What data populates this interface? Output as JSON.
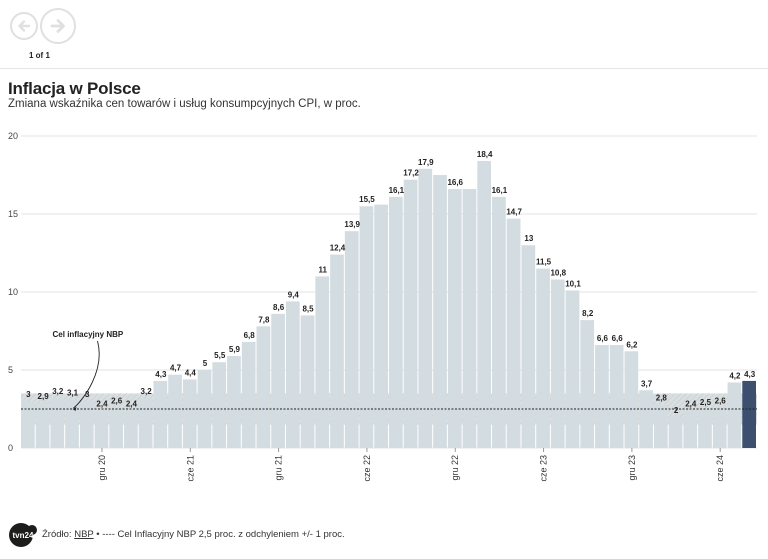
{
  "nav": {
    "page_indicator": "1 of 1"
  },
  "header": {
    "title": "Inflacja w Polsce",
    "subtitle": "Zmiana wskaźnika cen towarów i usług konsumpcyjnych CPI, w proc."
  },
  "footer": {
    "source_prefix": "Źródło:",
    "source_link": "NBP",
    "source_rest": "• ---- Cel Inflacyjny NBP 2,5 proc. z odchyleniem +/- 1 proc.",
    "logo_text": "tvn24"
  },
  "colors": {
    "bar": "#d3dde1",
    "highlight": "#3d4f6e",
    "band": "#b9c2c6"
  },
  "chart_data": {
    "type": "bar",
    "title": "Inflacja w Polsce",
    "subtitle": "Zmiana wskaźnika cen towarów i usług konsumpcyjnych CPI, w proc.",
    "xlabel": "",
    "ylabel": "",
    "ylim": [
      0,
      20
    ],
    "yticks": [
      0,
      5,
      10,
      15,
      20
    ],
    "grid": true,
    "values": [
      3,
      2.9,
      3.2,
      3.1,
      3,
      2.4,
      2.6,
      2.4,
      3.2,
      4.3,
      4.7,
      4.4,
      5,
      5.5,
      5.9,
      6.8,
      7.8,
      8.6,
      9.4,
      8.5,
      11,
      12.4,
      13.9,
      15.5,
      15.6,
      16.1,
      17.2,
      17.9,
      17.5,
      16.6,
      16.6,
      18.4,
      16.1,
      14.7,
      13,
      11.5,
      10.8,
      10.1,
      8.2,
      6.6,
      6.6,
      6.2,
      3.7,
      2.8,
      2,
      2.4,
      2.5,
      2.6,
      4.2,
      4.3
    ],
    "labels": [
      "3",
      "2,9",
      "3,2",
      "3,1",
      "3",
      "2,4",
      "2,6",
      "2,4",
      "3,2",
      "4,3",
      "4,7",
      "4,4",
      "5",
      "5,5",
      "5,9",
      "6,8",
      "7,8",
      "8,6",
      "9,4",
      "8,5",
      "11",
      "12,4",
      "13,9",
      "15,5",
      "",
      "16,1",
      "17,2",
      "17,9",
      "",
      "16,6",
      "",
      "18,4",
      "16,1",
      "14,7",
      "13",
      "11,5",
      "10,8",
      "10,1",
      "8,2",
      "6,6",
      "6,6",
      "6,2",
      "3,7",
      "2,8",
      "2",
      "2,4",
      "2,5",
      "2,6",
      "4,2",
      "4,3"
    ],
    "highlight_index": 49,
    "x_ticks": [
      {
        "index": 5,
        "label": "gru 20"
      },
      {
        "index": 11,
        "label": "cze 21"
      },
      {
        "index": 17,
        "label": "gru 21"
      },
      {
        "index": 23,
        "label": "cze 22"
      },
      {
        "index": 29,
        "label": "gru 22"
      },
      {
        "index": 35,
        "label": "cze 23"
      },
      {
        "index": 41,
        "label": "gru 23"
      },
      {
        "index": 47,
        "label": "cze 24"
      }
    ],
    "target": {
      "value": 2.5,
      "low": 1.5,
      "high": 3.5
    },
    "annotation": {
      "label": "Cel inflacyjny NBP",
      "index": 3,
      "value": 2.5
    }
  }
}
